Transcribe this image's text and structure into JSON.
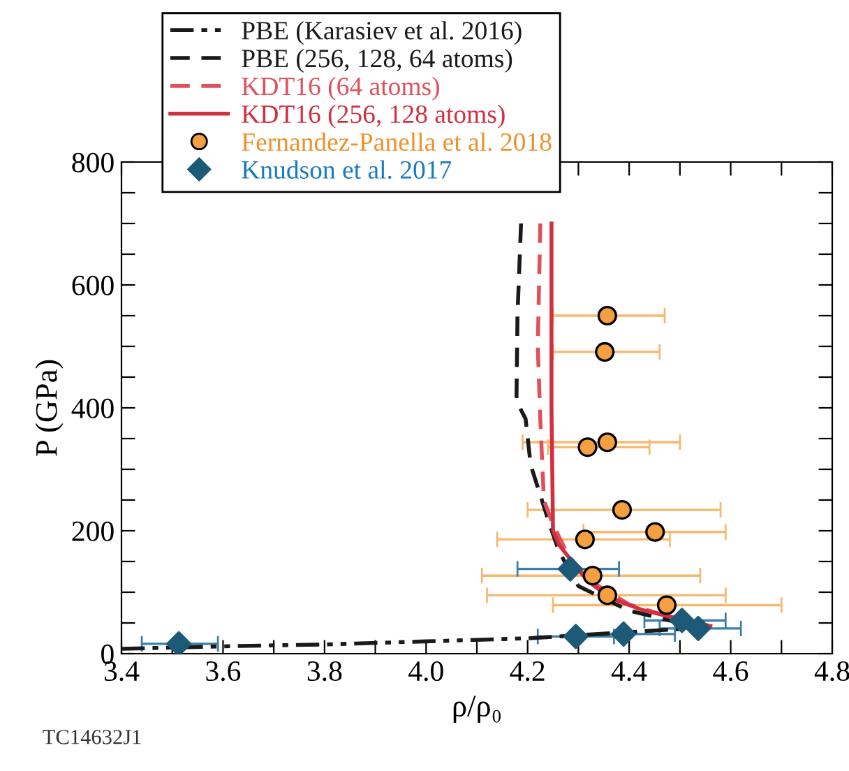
{
  "chart_data": {
    "type": "line",
    "xlabel": "ρ/ρ₀",
    "ylabel": "P (GPa)",
    "xlim": [
      3.4,
      4.8
    ],
    "ylim": [
      0,
      800
    ],
    "xticks": [
      3.4,
      {
        "value": 3.5,
        "label": null
      },
      3.6,
      {
        "value": 3.7,
        "label": null
      },
      3.8,
      {
        "value": 3.9,
        "label": null
      },
      {
        "value": 4.0,
        "label": "4.0"
      },
      {
        "value": 4.1,
        "label": null
      },
      4.2,
      {
        "value": 4.3,
        "label": null
      },
      4.4,
      {
        "value": 4.5,
        "label": null
      },
      4.6,
      {
        "value": 4.7,
        "label": null
      },
      4.8
    ],
    "yticks": [
      0,
      {
        "value": 50,
        "label": null
      },
      {
        "value": 100,
        "label": null
      },
      {
        "value": 150,
        "label": null
      },
      200,
      {
        "value": 250,
        "label": null
      },
      {
        "value": 300,
        "label": null
      },
      {
        "value": 350,
        "label": null
      },
      400,
      {
        "value": 450,
        "label": null
      },
      {
        "value": 500,
        "label": null
      },
      {
        "value": 550,
        "label": null
      },
      600,
      {
        "value": 650,
        "label": null
      },
      {
        "value": 700,
        "label": null
      },
      {
        "value": 750,
        "label": null
      },
      800
    ],
    "grid": false,
    "legend": "top left",
    "annotations": [
      "TC14632J1"
    ],
    "series": [
      {
        "name": "PBE (Karasiev et al. 2016)",
        "line_style": "dashdot",
        "color": "#1a1a1a",
        "x": [
          3.4,
          3.6,
          3.8,
          4.0,
          4.2,
          4.4,
          4.5,
          4.55
        ],
        "values": [
          8,
          12,
          15,
          20,
          25,
          35,
          40,
          45
        ]
      },
      {
        "name": "PBE (256, 128, 64 atoms)",
        "line_style": "dashed",
        "color": "#1a1a1a",
        "x": [
          4.187,
          4.18,
          4.178,
          4.196,
          4.206,
          4.243,
          4.262,
          4.3,
          4.4,
          4.5,
          4.55
        ],
        "values": [
          700,
          550,
          411,
          382,
          307,
          211,
          166,
          110,
          70,
          50,
          45
        ]
      },
      {
        "name": "KDT16 (64 atoms)",
        "line_style": "dashed",
        "color": "#e0505a",
        "x": [
          4.225,
          4.22,
          4.225,
          4.232,
          4.25,
          4.28,
          4.32,
          4.4,
          4.5,
          4.55
        ],
        "values": [
          700,
          500,
          380,
          250,
          210,
          160,
          120,
          80,
          55,
          45
        ]
      },
      {
        "name": "KDT16 (256, 128 atoms)",
        "line_style": "solid",
        "color": "#d0303f",
        "x": [
          4.247,
          4.247,
          4.25,
          4.262,
          4.316,
          4.362,
          4.426,
          4.56
        ],
        "values": [
          700,
          400,
          200,
          177,
          120,
          91,
          71,
          45
        ]
      },
      {
        "name": "Fernandez-Panella et al. 2018",
        "type": "scatter",
        "marker": "circle",
        "color": "#f5a040",
        "x": [
          4.357,
          4.352,
          4.318,
          4.357,
          4.386,
          4.451,
          4.313,
          4.328,
          4.357,
          4.474
        ],
        "values": [
          550,
          491,
          336,
          344,
          234,
          198,
          186,
          127,
          95,
          79
        ],
        "xerrors": [
          [
            4.25,
            4.47
          ],
          [
            4.25,
            4.46
          ],
          [
            4.24,
            4.44
          ],
          [
            4.19,
            4.5
          ],
          [
            4.2,
            4.58
          ],
          [
            4.31,
            4.59
          ],
          [
            4.14,
            4.48
          ],
          [
            4.11,
            4.54
          ],
          [
            4.12,
            4.59
          ],
          [
            4.25,
            4.7
          ]
        ]
      },
      {
        "name": "Knudson et al. 2017",
        "type": "scatter",
        "marker": "diamond",
        "color": "#1d5a78",
        "x": [
          3.513,
          4.295,
          4.389,
          4.504,
          4.536,
          4.284
        ],
        "values": [
          16,
          28,
          32,
          54,
          41,
          138
        ],
        "xerrors": [
          [
            3.44,
            3.59
          ],
          [
            4.22,
            4.37
          ],
          [
            4.29,
            4.49
          ],
          [
            4.43,
            4.59
          ],
          [
            4.46,
            4.62
          ],
          [
            4.18,
            4.38
          ]
        ]
      }
    ]
  }
}
